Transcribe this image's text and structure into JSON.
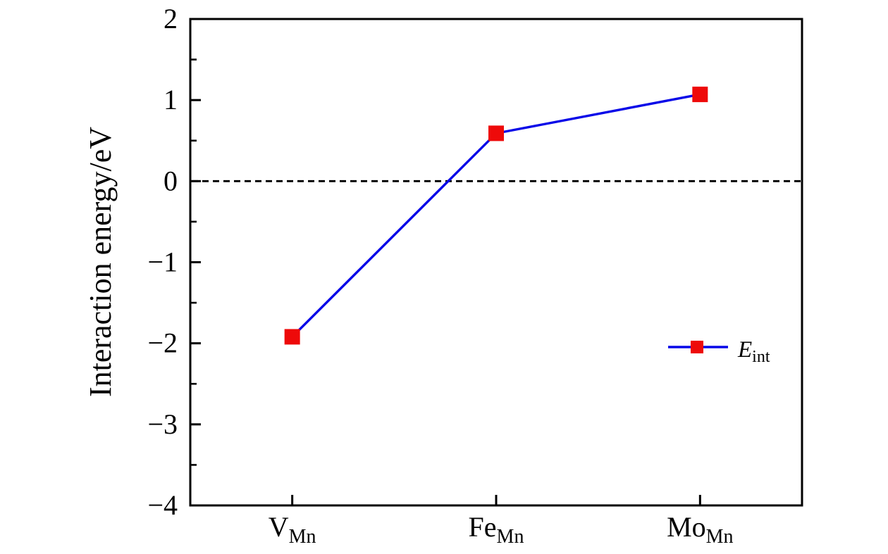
{
  "chart_data": {
    "type": "line",
    "title": "",
    "xlabel": "",
    "ylabel": "Interaction energy/eV",
    "categories": [
      {
        "main": "V",
        "sub": "Mn"
      },
      {
        "main": "Fe",
        "sub": "Mn"
      },
      {
        "main": "Mo",
        "sub": "Mn"
      }
    ],
    "series": [
      {
        "name_main": "E",
        "name_sub": "int",
        "values": [
          -1.92,
          0.59,
          1.07
        ],
        "line_color": "#0808e8",
        "marker": "square",
        "marker_color": "#ee0a0a"
      }
    ],
    "ylim": [
      -4,
      2
    ],
    "yticks": [
      {
        "value": 2,
        "label": "2"
      },
      {
        "value": 1,
        "label": "1"
      },
      {
        "value": 0,
        "label": "0"
      },
      {
        "value": -1,
        "label": "−1"
      },
      {
        "value": -2,
        "label": "−2"
      },
      {
        "value": -3,
        "label": "−3"
      },
      {
        "value": -4,
        "label": "−4"
      }
    ],
    "yminorticks": [
      1.5,
      0.5,
      -0.5,
      -1.5,
      -2.5,
      -3.5
    ],
    "zero_line": {
      "value": 0,
      "style": "dashed",
      "color": "#000000"
    },
    "legend": {
      "label_main": "E",
      "label_sub": "int",
      "position": "right-middle"
    },
    "grid": false,
    "axis_color": "#000000",
    "background": "#ffffff"
  }
}
